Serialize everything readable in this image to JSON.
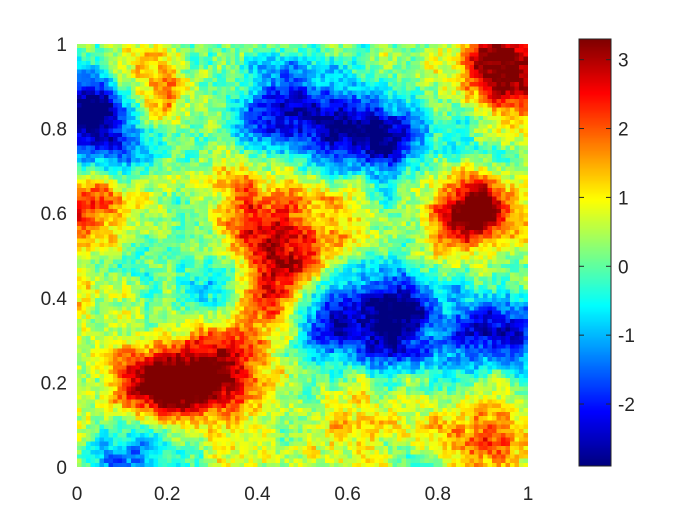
{
  "chart_data": {
    "type": "heatmap",
    "title": "",
    "xlabel": "",
    "ylabel": "",
    "xlim": [
      0,
      1
    ],
    "ylim": [
      0,
      1
    ],
    "x_ticks": [
      "0",
      "0.2",
      "0.4",
      "0.6",
      "0.8",
      "1"
    ],
    "y_ticks": [
      "0",
      "0.2",
      "0.4",
      "0.6",
      "0.8",
      "1"
    ],
    "colormap": "jet",
    "color_range": [
      -2.9,
      3.3
    ],
    "colorbar_ticks": [
      "-2",
      "-1",
      "0",
      "1",
      "2",
      "3"
    ],
    "grid": false,
    "grid_resolution": [
      100,
      100
    ],
    "features": [
      {
        "x": 0.05,
        "y": 0.78,
        "value": -2.3
      },
      {
        "x": 0.02,
        "y": 0.85,
        "value": -2.0
      },
      {
        "x": 0.42,
        "y": 0.8,
        "value": -2.1
      },
      {
        "x": 0.58,
        "y": 0.82,
        "value": -2.2
      },
      {
        "x": 0.68,
        "y": 0.78,
        "value": -2.3
      },
      {
        "x": 0.48,
        "y": 0.9,
        "value": -1.2
      },
      {
        "x": 0.55,
        "y": 0.34,
        "value": -2.2
      },
      {
        "x": 0.7,
        "y": 0.4,
        "value": -2.5
      },
      {
        "x": 0.72,
        "y": 0.3,
        "value": -2.0
      },
      {
        "x": 0.98,
        "y": 0.3,
        "value": -2.0
      },
      {
        "x": 0.9,
        "y": 0.32,
        "value": -1.5
      },
      {
        "x": 0.12,
        "y": 0.03,
        "value": -1.9
      },
      {
        "x": 0.3,
        "y": 0.42,
        "value": -1.1
      },
      {
        "x": 0.85,
        "y": 0.6,
        "value": 2.4
      },
      {
        "x": 0.92,
        "y": 0.62,
        "value": 2.0
      },
      {
        "x": 0.32,
        "y": 0.23,
        "value": 3.2
      },
      {
        "x": 0.22,
        "y": 0.2,
        "value": 2.6
      },
      {
        "x": 0.16,
        "y": 0.18,
        "value": 2.2
      },
      {
        "x": 0.45,
        "y": 0.5,
        "value": 2.5
      },
      {
        "x": 0.4,
        "y": 0.58,
        "value": 1.8
      },
      {
        "x": 0.52,
        "y": 0.62,
        "value": 1.6
      },
      {
        "x": 0.92,
        "y": 0.98,
        "value": 2.4
      },
      {
        "x": 0.97,
        "y": 0.93,
        "value": 2.0
      },
      {
        "x": 0.18,
        "y": 0.9,
        "value": 2.1
      },
      {
        "x": 0.02,
        "y": 0.62,
        "value": 1.8
      },
      {
        "x": 0.9,
        "y": 0.1,
        "value": 2.0
      },
      {
        "x": 0.75,
        "y": 0.12,
        "value": 1.2
      },
      {
        "x": 0.44,
        "y": 0.38,
        "value": 1.8
      },
      {
        "x": 0.6,
        "y": 0.12,
        "value": 1.2
      },
      {
        "x": 0.35,
        "y": 0.7,
        "value": 1.0
      }
    ]
  }
}
